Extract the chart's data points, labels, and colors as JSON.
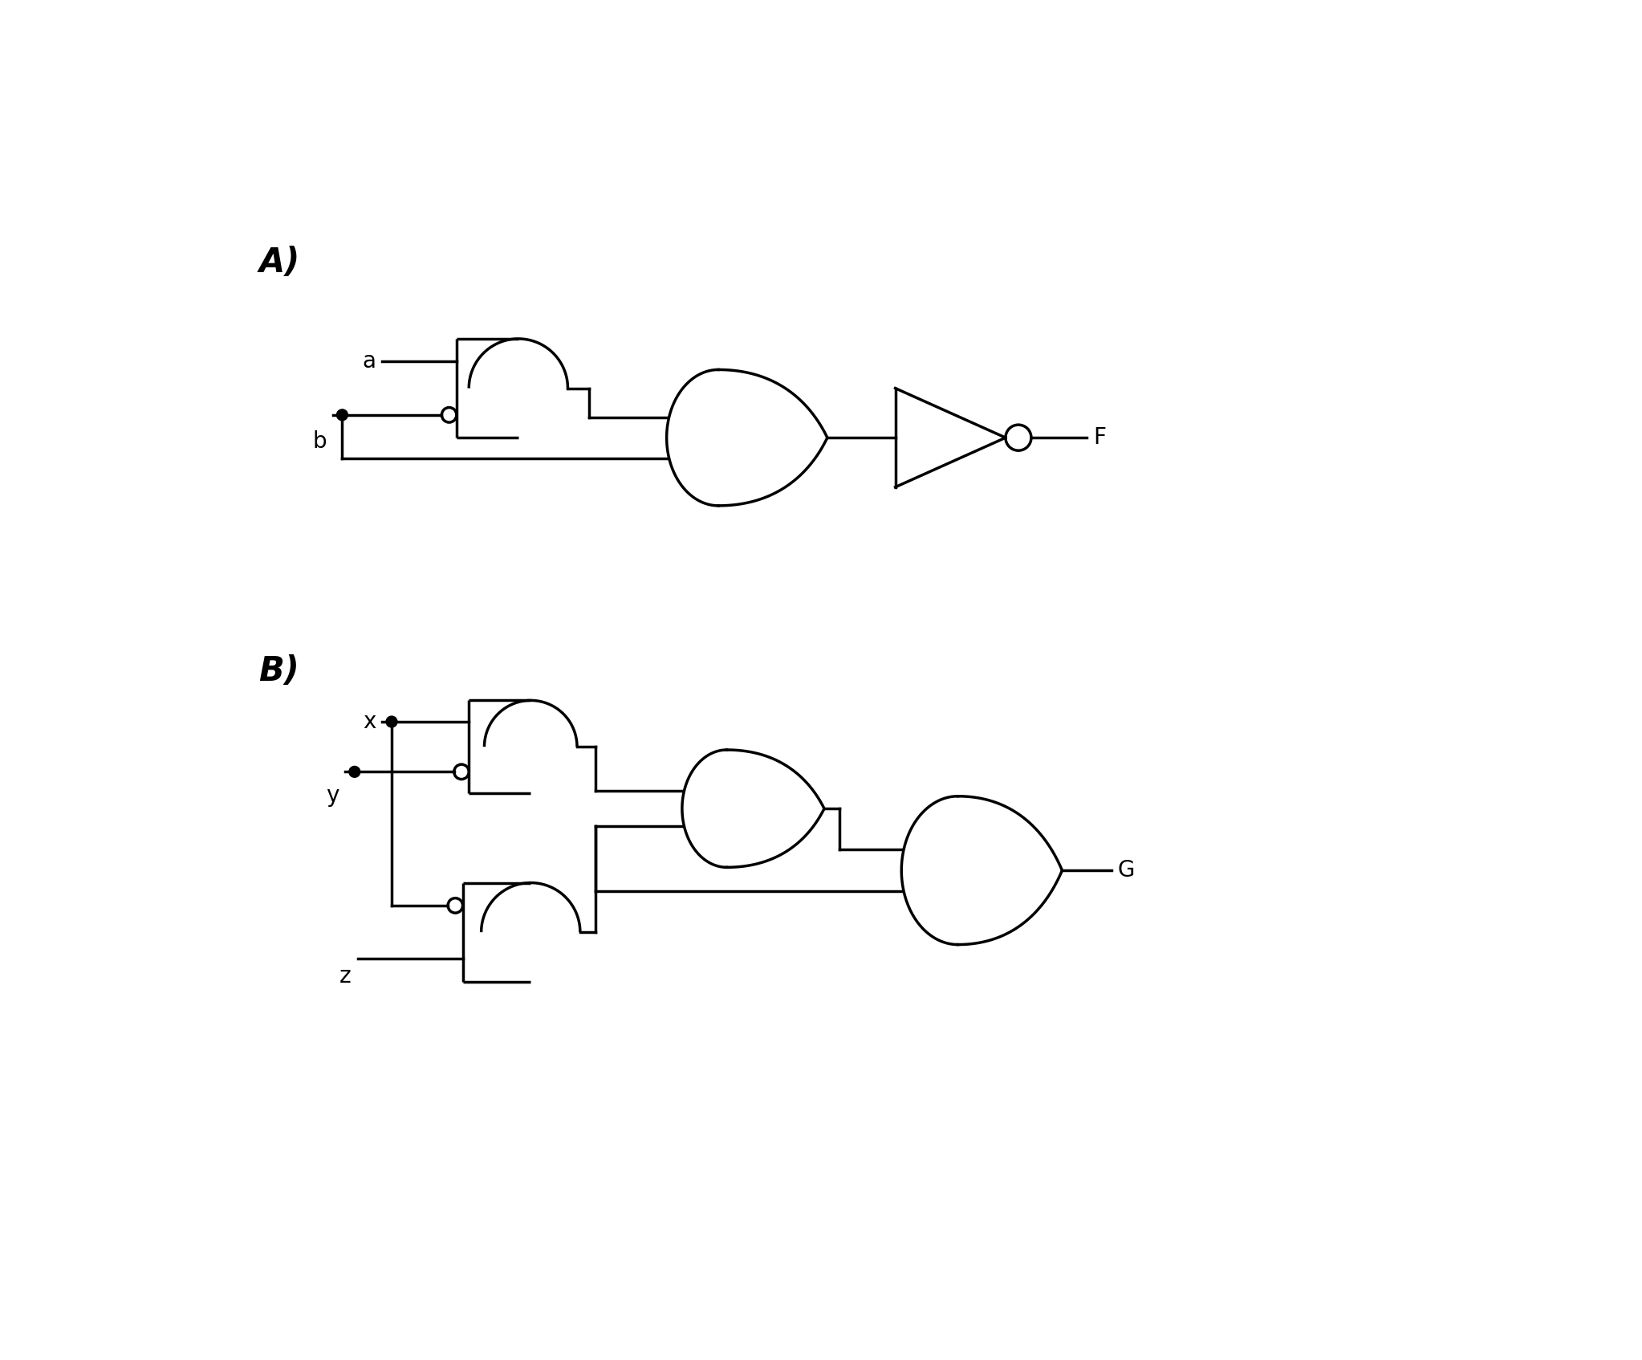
{
  "bg_color": "#ffffff",
  "line_color": "#000000",
  "line_width": 2.5,
  "label_A": "A)",
  "label_B": "B)",
  "input_a": "a",
  "input_b": "b",
  "input_x": "x",
  "input_y": "y",
  "input_z": "z",
  "output_F": "F",
  "output_G": "G",
  "dot_r": 0.09,
  "bubble_r": 0.12,
  "fontsize_label": 30,
  "fontsize_io": 20
}
